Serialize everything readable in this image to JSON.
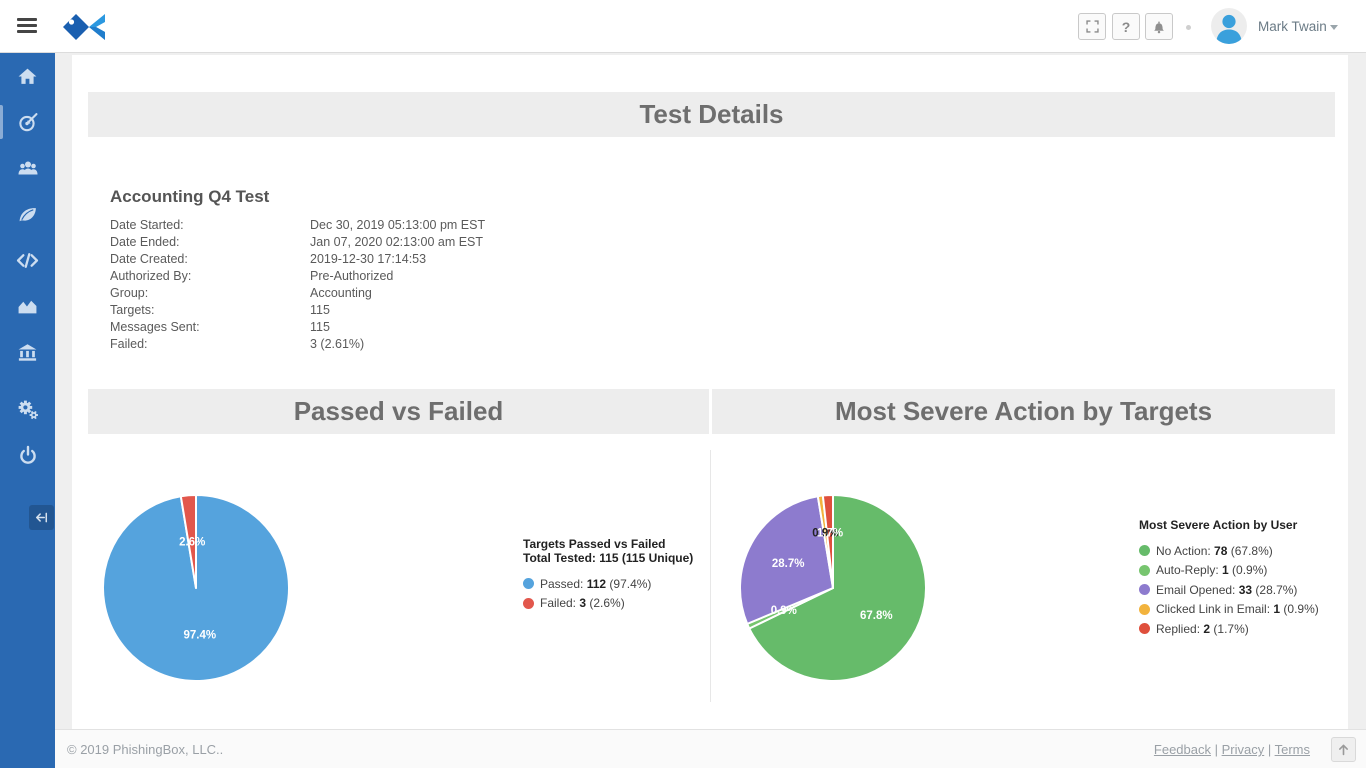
{
  "topbar": {
    "menu_icon": "hamburger-menu-icon",
    "logo_icon": "phishingbox-fish-logo",
    "action_icons": [
      "fullscreen-icon",
      "help-icon",
      "bell-icon"
    ],
    "help_glyph": "?",
    "user": {
      "name": "Mark Twain",
      "avatar_icon": "person-icon"
    }
  },
  "sidebar": {
    "background_color": "#2a69b2",
    "items": [
      {
        "name": "home-icon"
      },
      {
        "name": "target-icon",
        "active": true
      },
      {
        "name": "users-icon"
      },
      {
        "name": "leaf-icon"
      },
      {
        "name": "code-icon"
      },
      {
        "name": "chart-icon"
      },
      {
        "name": "bank-icon"
      },
      {
        "name": "gear-icon"
      },
      {
        "name": "power-icon"
      }
    ],
    "collapse_icon": "collapse-left-arrow-icon"
  },
  "page": {
    "title": "Test Details",
    "test": {
      "name": "Accounting Q4 Test",
      "fields": [
        {
          "label": "Date Started:",
          "value": "Dec 30, 2019 05:13:00 pm EST"
        },
        {
          "label": "Date Ended:",
          "value": "Jan 07, 2020 02:13:00 am EST"
        },
        {
          "label": "Date Created:",
          "value": "2019-12-30 17:14:53"
        },
        {
          "label": "Authorized By:",
          "value": "Pre-Authorized"
        },
        {
          "label": "Group:",
          "value": "Accounting"
        },
        {
          "label": "Targets:",
          "value": "115"
        },
        {
          "label": "Messages Sent:",
          "value": "115"
        },
        {
          "label": "Failed:",
          "value": "3 (2.61%)"
        }
      ]
    }
  },
  "chart_data": [
    {
      "type": "pie",
      "title": "Passed vs Failed",
      "legend_title": "Targets Passed vs Failed",
      "legend_subtitle": "Total Tested: 115 (115 Unique)",
      "total": 115,
      "slices": [
        {
          "label": "Passed",
          "value": 112,
          "pct": "97.4%",
          "color": "#55a3dd",
          "label_color": "#ffffff",
          "label_r": 0.5
        },
        {
          "label": "Failed",
          "value": 3,
          "pct": "2.6%",
          "color": "#e2574c",
          "label_color": "#ffffff",
          "label_r": 0.5
        }
      ]
    },
    {
      "type": "pie",
      "title": "Most Severe Action by Targets",
      "legend_title": "Most Severe Action by User",
      "total": 115,
      "slices": [
        {
          "label": "No Action",
          "value": 78,
          "pct": "67.8%",
          "color": "#66bb6a",
          "label_color": "#ffffff",
          "label_r": 0.55
        },
        {
          "label": "Auto-Reply",
          "value": 1,
          "pct": "0.9%",
          "color": "#77c56f",
          "label_color": "#ffffff",
          "label_r": 0.58
        },
        {
          "label": "Email Opened",
          "value": 33,
          "pct": "28.7%",
          "color": "#8d7bce",
          "label_color": "#ffffff",
          "label_r": 0.55
        },
        {
          "label": "Clicked Link in Email",
          "value": 1,
          "pct": "0.9%",
          "color": "#f2b33d",
          "label_color": "#222222",
          "label_r": 0.6
        },
        {
          "label": "Replied",
          "value": 2,
          "pct": "1.7%",
          "color": "#df4f3c",
          "label_color": "#ffffff",
          "label_r": 0.6
        }
      ]
    }
  ],
  "footer": {
    "copyright": "© 2019 PhishingBox, LLC..",
    "links": [
      "Feedback",
      "Privacy",
      "Terms"
    ],
    "scroll_top_icon": "up-arrow-icon"
  }
}
